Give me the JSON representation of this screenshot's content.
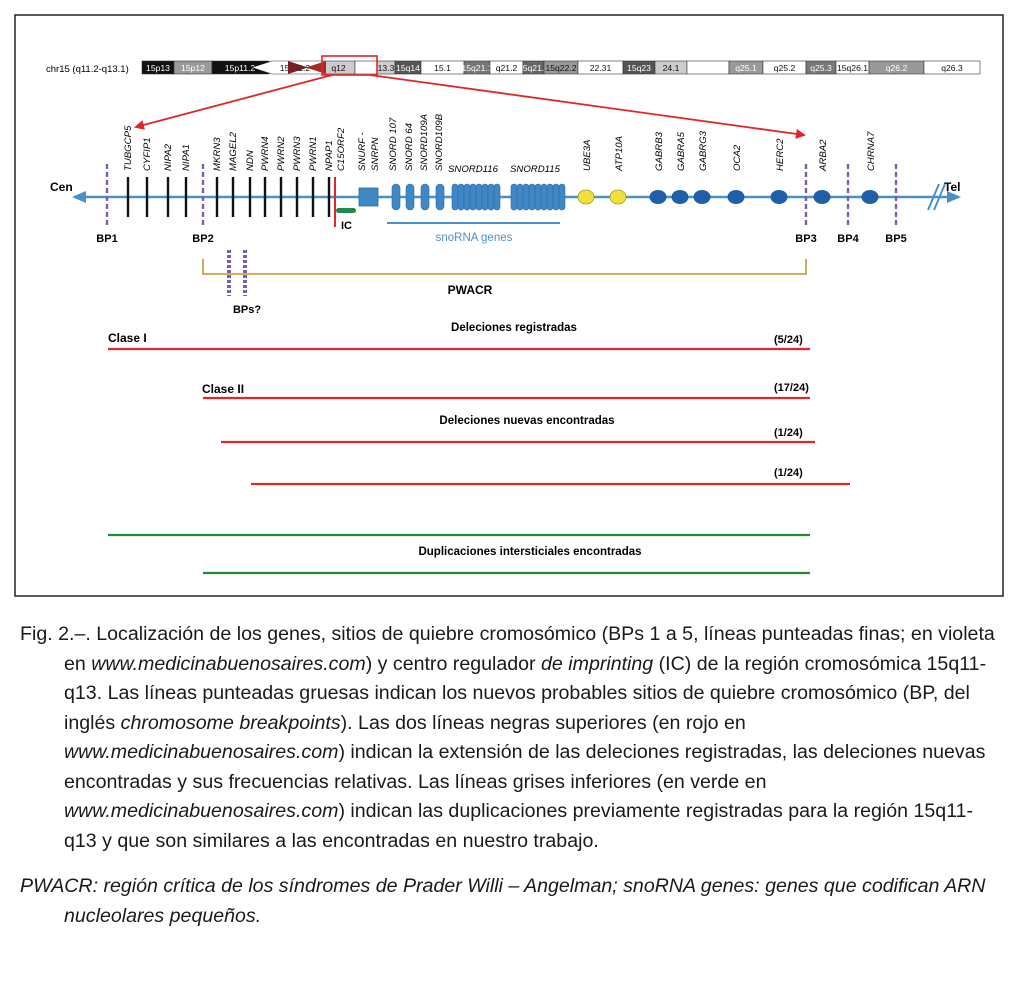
{
  "figure": {
    "ideogram": {
      "label": "chr15 (q11.2-q13.1)",
      "bands": [
        {
          "text": "15p13",
          "fill": "#111111",
          "color": "#ffffff"
        },
        {
          "text": "15p12",
          "fill": "#9a9a9a",
          "color": "#ffffff"
        },
        {
          "text": "15p11.2",
          "fill": "#111111",
          "color": "#ffffff"
        },
        {
          "text": "15q11.2",
          "fill": "#ffffff",
          "color": "#111111"
        },
        {
          "text": "q12",
          "fill": "#cccccc",
          "color": "#111111"
        },
        {
          "text": "",
          "fill": "#ffffff",
          "color": "#111111"
        },
        {
          "text": "13.3",
          "fill": "#cfcfcf",
          "color": "#111111"
        },
        {
          "text": "15q14",
          "fill": "#555555",
          "color": "#ffffff"
        },
        {
          "text": "15.1",
          "fill": "#ffffff",
          "color": "#111111"
        },
        {
          "text": "15q21.1",
          "fill": "#777777",
          "color": "#ffffff"
        },
        {
          "text": "q21.2",
          "fill": "#ffffff",
          "color": "#111111"
        },
        {
          "text": "15q21.3",
          "fill": "#666666",
          "color": "#ffffff"
        },
        {
          "text": "15q22.2",
          "fill": "#999999",
          "color": "#111111"
        },
        {
          "text": "22.31",
          "fill": "#ffffff",
          "color": "#111111"
        },
        {
          "text": "15q23",
          "fill": "#555555",
          "color": "#ffffff"
        },
        {
          "text": "24.1",
          "fill": "#cccccc",
          "color": "#111111"
        },
        {
          "text": "",
          "fill": "#ffffff",
          "color": "#111111"
        },
        {
          "text": "q25.1",
          "fill": "#9a9a9a",
          "color": "#ffffff"
        },
        {
          "text": "q25.2",
          "fill": "#ffffff",
          "color": "#111111"
        },
        {
          "text": "q25.3",
          "fill": "#777777",
          "color": "#ffffff"
        },
        {
          "text": "15q26.1",
          "fill": "#ffffff",
          "color": "#111111"
        },
        {
          "text": "q26.2",
          "fill": "#999999",
          "color": "#ffffff"
        },
        {
          "text": "q26.3",
          "fill": "#ffffff",
          "color": "#111111"
        }
      ]
    },
    "cen_label": "Cen",
    "tel_label": "Tel",
    "breakpoints": [
      "BP1",
      "BP2",
      "BP3",
      "BP4",
      "BP5"
    ],
    "bps_unknown_label": "BPs?",
    "ic_label": "IC",
    "genes_black": [
      "TUBGCP5",
      "CYFIP1",
      "NIPA2",
      "NIPA1",
      "MKRN3",
      "MAGEL2",
      "NDN",
      "PWRN4",
      "PWRN2",
      "PWRN3",
      "PWRN1",
      "NPAP1",
      "C15ORF2"
    ],
    "genes_snorna_box": [
      "SNURF -",
      "SNRPN"
    ],
    "genes_snord": [
      "SNORD 107",
      "SNORD 64",
      "SNORD109A",
      "SNORD109B"
    ],
    "snord116_label": "SNORD116",
    "snord115_label": "SNORD115",
    "genes_yellow": [
      "UBE3A",
      "ATP10A"
    ],
    "genes_blue": [
      "GABRB3",
      "GABRA5",
      "GABRG3",
      "OCA2",
      "HERC2",
      "ARBA2",
      "CHRNA7"
    ],
    "snorna_genes_label": "snoRNA genes",
    "pwacr_label": "PWACR",
    "deletions_registered_label": "Deleciones registradas",
    "class1_label": "Clase I",
    "class1_freq": "(5/24)",
    "class2_label": "Clase II",
    "class2_freq": "(17/24)",
    "deletions_new_label": "Deleciones nuevas encontradas",
    "new1_freq": "(1/24)",
    "new2_freq": "(1/24)",
    "duplications_label": "Duplicaciones intersticiales encontradas",
    "colors": {
      "red": "#e0262b",
      "green": "#1e8a3c",
      "axis": "#4a90c8",
      "purple": "#7b5ea7",
      "gold": "#c9a24a",
      "box_blue": "#3f88c5",
      "yellow": "#f2e03a",
      "dark_blue": "#1f5fa8",
      "ic_green": "#1f8a4c"
    }
  },
  "caption": {
    "p1_a": "Fig. 2.–. Localización de los genes, sitios de quiebre cromosómico (BPs 1 a 5, líneas punteadas finas; en violeta en ",
    "p1_url1": "www.medicinabuenosaires.com",
    "p1_b": ") y centro regulador ",
    "p1_em1": "de imprinting",
    "p1_c": " (IC) de la región cromosómica 15q11-q13. Las líneas punteadas gruesas indican los nuevos probables sitios de quiebre cromosómico (BP, del inglés ",
    "p1_em2": "chromosome breakpoints",
    "p1_d": "). Las dos líneas negras superiores (en rojo en ",
    "p1_url2": "www.medicinabuenosaires.com",
    "p1_e": ") indican la extensión de las deleciones registradas, las deleciones nuevas encontradas y sus frecuencias relativas. Las líneas grises inferiores (en verde en ",
    "p1_url3": "www.medicinabuenosaires.com",
    "p1_f": ") indican las duplicaciones previamente registradas para la región 15q11-q13 y que son similares a las encontradas en nuestro trabajo.",
    "p2": "PWACR: región crítica de los síndromes de Prader Willi – Angelman;  snoRNA genes: genes que codifican ARN nucleolares pequeños."
  }
}
